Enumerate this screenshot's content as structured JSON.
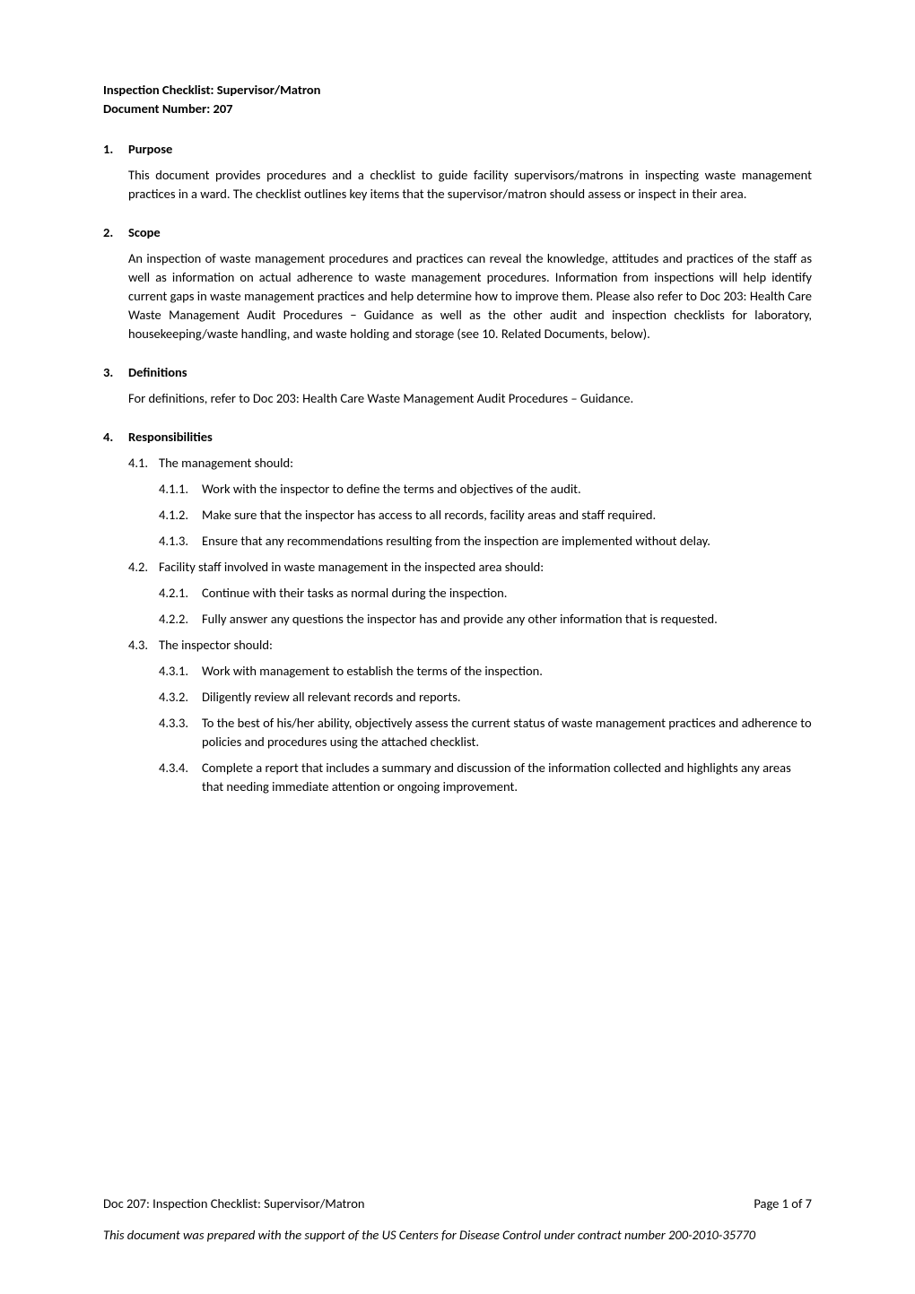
{
  "title": {
    "line1": "Inspection Checklist: Supervisor/Matron",
    "line2": "Document Number: 207"
  },
  "sections": {
    "purpose": {
      "number": "1.",
      "heading": "Purpose",
      "body": "This document provides procedures and a checklist to guide facility supervisors/matrons in inspecting waste management practices in a ward. The checklist outlines key items that the supervisor/matron should assess or inspect in their area."
    },
    "scope": {
      "number": "2.",
      "heading": "Scope",
      "body": "An inspection of waste management procedures and practices can reveal the knowledge, attitudes and practices of the staff as well as information on actual adherence to waste management procedures. Information from inspections will help identify current gaps in waste management practices and help determine how to improve them. Please also refer to Doc 203: Health Care Waste Management Audit Procedures − Guidance as well as the other audit and inspection checklists for laboratory, housekeeping/waste handling, and waste holding and storage (see 10. Related Documents, below)."
    },
    "definitions": {
      "number": "3.",
      "heading": "Definitions",
      "body": "For definitions, refer to Doc 203: Health Care Waste Management Audit Procedures – Guidance."
    },
    "responsibilities": {
      "number": "4.",
      "heading": "Responsibilities",
      "items": [
        {
          "num": "4.1.",
          "text": "The management should:",
          "children": [
            {
              "num": "4.1.1.",
              "text": "Work with the inspector to define the terms and objectives of the audit."
            },
            {
              "num": "4.1.2.",
              "text": "Make sure that the inspector has access to all records, facility areas and staff required."
            },
            {
              "num": "4.1.3.",
              "text": "Ensure that any recommendations resulting from the inspection are implemented without delay."
            }
          ]
        },
        {
          "num": "4.2.",
          "text": "Facility staff involved in waste management in the inspected area should:",
          "children": [
            {
              "num": "4.2.1.",
              "text": "Continue with their tasks as normal during the inspection."
            },
            {
              "num": "4.2.2.",
              "text": "Fully answer any questions the inspector has and provide any other information that is requested."
            }
          ]
        },
        {
          "num": "4.3.",
          "text": "The inspector should:",
          "children": [
            {
              "num": "4.3.1.",
              "text": "Work with management to establish the terms of the inspection."
            },
            {
              "num": "4.3.2.",
              "text": "Diligently review all relevant records and reports."
            },
            {
              "num": "4.3.3.",
              "text": "To the best of his/her ability, objectively assess the current status of waste management practices and adherence to policies and procedures using the attached checklist."
            },
            {
              "num": "4.3.4.",
              "text": "Complete a report that includes a summary and discussion of the information collected and highlights any areas that needing immediate attention or ongoing improvement."
            }
          ]
        }
      ]
    }
  },
  "footer": {
    "docref": "Doc 207: Inspection Checklist: Supervisor/Matron",
    "page": "Page 1 of 7",
    "attribution": "This document was prepared with the support of the US Centers for Disease Control under contract number 200-2010-35770"
  }
}
